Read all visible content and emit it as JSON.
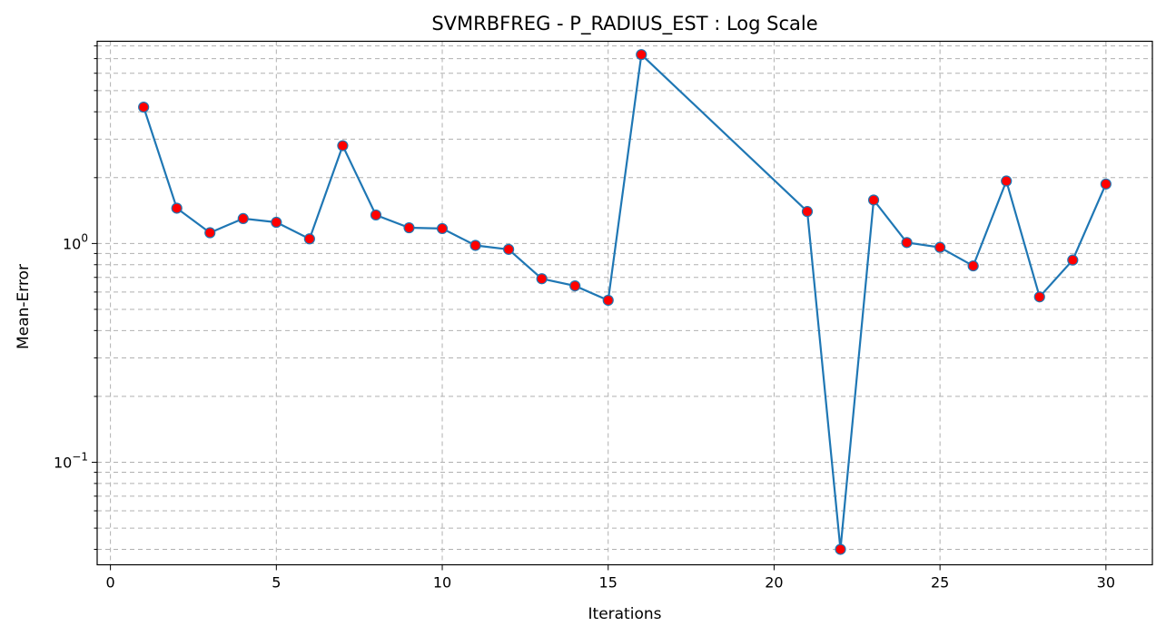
{
  "chart_data": {
    "type": "line",
    "title": "SVMRBFREG - P_RADIUS_EST : Log Scale",
    "xlabel": "Iterations",
    "ylabel": "Mean-Error",
    "xlim": [
      -0.4,
      31.4
    ],
    "ylim": [
      0.034,
      8.4
    ],
    "yscale": "log",
    "grid": true,
    "x_ticks": [
      0,
      5,
      10,
      15,
      20,
      25,
      30
    ],
    "y_ticks": [
      {
        "value": 0.1,
        "base": "10",
        "exp": "−1"
      },
      {
        "value": 1,
        "base": "10",
        "exp": "0"
      }
    ],
    "y_minor_ticks": [
      0.04,
      0.05,
      0.06,
      0.07,
      0.08,
      0.09,
      0.2,
      0.3,
      0.4,
      0.5,
      0.6,
      0.7,
      0.8,
      0.9,
      2,
      3,
      4,
      5,
      6,
      7,
      8
    ],
    "series": [
      {
        "line_color": "#1f77b4",
        "marker_color": "#ff0000",
        "x": [
          1,
          2,
          3,
          4,
          5,
          6,
          7,
          8,
          9,
          10,
          11,
          12,
          13,
          14,
          15,
          16,
          21,
          22,
          23,
          24,
          25,
          26,
          27,
          28,
          29,
          30
        ],
        "y": [
          4.2,
          1.45,
          1.12,
          1.3,
          1.25,
          1.05,
          2.8,
          1.35,
          1.18,
          1.17,
          0.98,
          0.94,
          0.69,
          0.64,
          0.55,
          7.3,
          1.4,
          0.04,
          1.58,
          1.01,
          0.96,
          0.79,
          1.93,
          0.57,
          0.84,
          1.87
        ]
      }
    ]
  }
}
